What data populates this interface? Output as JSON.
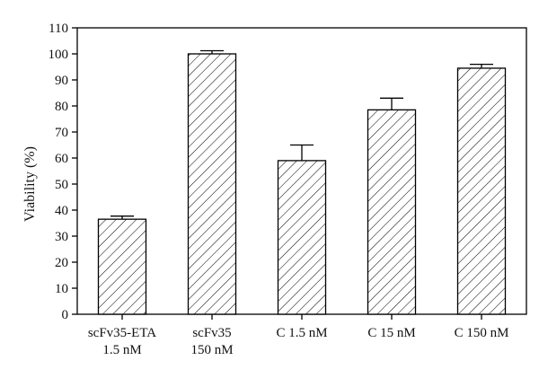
{
  "chart_data": {
    "type": "bar",
    "ylabel": "Viability (%)",
    "ylim": [
      0,
      110
    ],
    "yticks": [
      0,
      10,
      20,
      30,
      40,
      50,
      60,
      70,
      80,
      90,
      100,
      110
    ],
    "categories": [
      [
        "scFv35-ETA",
        "1.5 nM"
      ],
      [
        "scFv35",
        "150 nM"
      ],
      [
        "C 1.5 nM"
      ],
      [
        "C 15 nM"
      ],
      [
        "C 150 nM"
      ]
    ],
    "values": [
      36.5,
      100,
      59,
      78.5,
      94.5
    ],
    "errors": [
      1.2,
      1.2,
      6,
      4.5,
      1.5
    ],
    "pattern": "diagonal-hatch",
    "bar_fill": "#ffffff",
    "line_color": "#000000",
    "grid": false,
    "legend": "none"
  }
}
